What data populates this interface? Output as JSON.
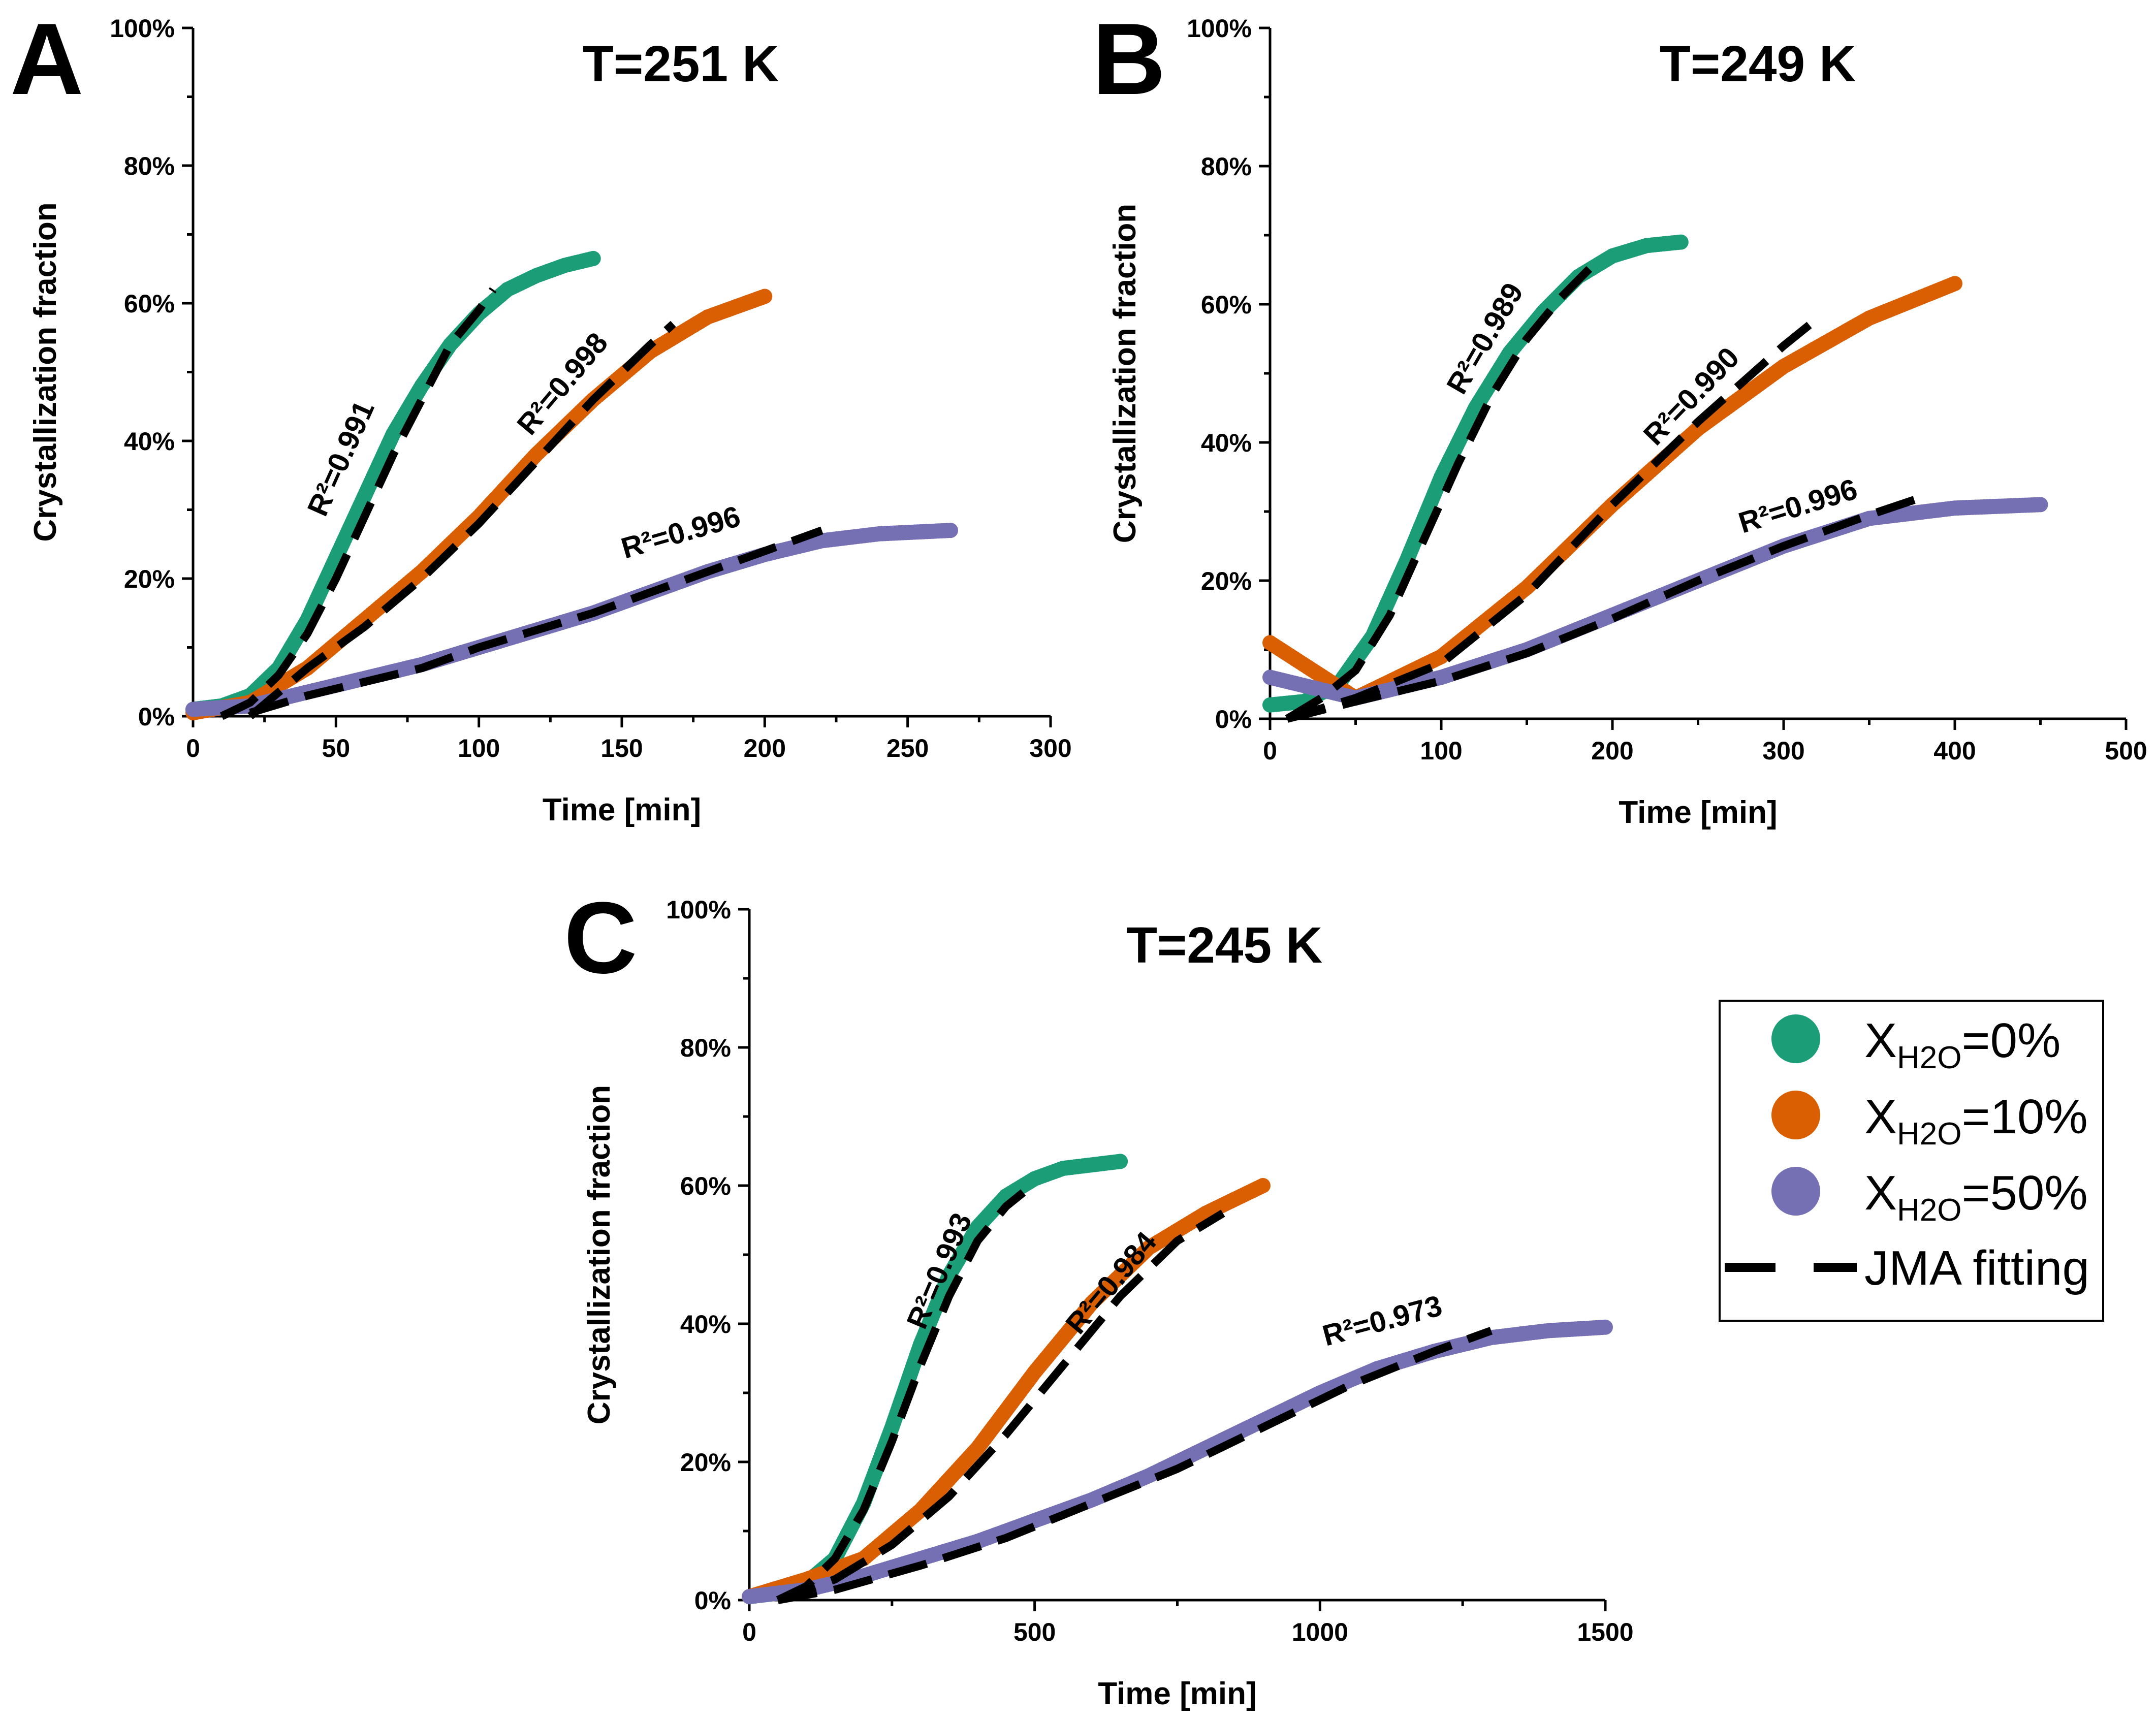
{
  "chart_data": [
    {
      "type": "scatter",
      "panel": "A",
      "title": "T=251 K",
      "xlabel": "Time [min]",
      "ylabel": "Crystallization fraction",
      "xlim": [
        0,
        300
      ],
      "ylim": [
        0,
        100
      ],
      "xticks": [
        "0",
        "50",
        "100",
        "150",
        "200",
        "250",
        "300"
      ],
      "yticks": [
        "0%",
        "20%",
        "40%",
        "60%",
        "80%",
        "100%"
      ],
      "series": [
        {
          "name": "X_H2O=0%",
          "color": "#1b9e77",
          "x": [
            0,
            10,
            20,
            30,
            40,
            50,
            60,
            70,
            80,
            90,
            100,
            110,
            120,
            130,
            140
          ],
          "y": [
            1,
            1.5,
            3,
            7,
            14,
            23,
            32,
            41,
            48,
            54,
            58.5,
            62,
            64,
            65.5,
            66.5
          ]
        },
        {
          "name": "X_H2O=10%",
          "color": "#d95f02",
          "x": [
            0,
            20,
            40,
            60,
            80,
            100,
            120,
            140,
            160,
            180,
            200
          ],
          "y": [
            0.5,
            2,
            7,
            14,
            21,
            29,
            38,
            46,
            53,
            58,
            61
          ]
        },
        {
          "name": "X_H2O=50%",
          "color": "#7570b3",
          "x": [
            0,
            20,
            40,
            60,
            80,
            100,
            120,
            140,
            160,
            180,
            200,
            220,
            240,
            265
          ],
          "y": [
            1,
            1.5,
            3.5,
            5.5,
            7.5,
            10,
            12.5,
            15,
            18,
            21,
            23.5,
            25.5,
            26.5,
            27
          ]
        }
      ],
      "fits": [
        {
          "name": "JMA fitting",
          "for": "X_H2O=0%",
          "r2": "R²=0.991",
          "x": [
            10,
            20,
            30,
            40,
            50,
            60,
            70,
            80,
            90,
            100,
            105
          ],
          "y": [
            0,
            2,
            6,
            12,
            20,
            29,
            38,
            46,
            54,
            59,
            62
          ]
        },
        {
          "name": "JMA fitting",
          "for": "X_H2O=10%",
          "r2": "R²=0.998",
          "x": [
            20,
            40,
            60,
            80,
            100,
            120,
            140,
            160,
            168
          ],
          "y": [
            0,
            7,
            13,
            20,
            28,
            37,
            46,
            54,
            57
          ]
        },
        {
          "name": "JMA fitting",
          "for": "X_H2O=50%",
          "r2": "R²=0.996",
          "x": [
            20,
            40,
            60,
            80,
            100,
            120,
            140,
            160,
            180,
            200,
            220
          ],
          "y": [
            0.5,
            3,
            5,
            7,
            10,
            12.5,
            15,
            18,
            21,
            24,
            27
          ]
        }
      ]
    },
    {
      "type": "scatter",
      "panel": "B",
      "title": "T=249 K",
      "xlabel": "Time [min]",
      "ylabel": "Crystallization fraction",
      "xlim": [
        0,
        500
      ],
      "ylim": [
        0,
        100
      ],
      "xticks": [
        "0",
        "100",
        "200",
        "300",
        "400",
        "500"
      ],
      "yticks": [
        "0%",
        "20%",
        "40%",
        "60%",
        "80%",
        "100%"
      ],
      "series": [
        {
          "name": "X_H2O=0%",
          "color": "#1b9e77",
          "x": [
            0,
            20,
            40,
            60,
            80,
            100,
            120,
            140,
            160,
            180,
            200,
            220,
            240
          ],
          "y": [
            2,
            2.5,
            5,
            12,
            23,
            35,
            45,
            53,
            59,
            64,
            67,
            68.5,
            69
          ]
        },
        {
          "name": "X_H2O=10%",
          "color": "#d95f02",
          "x": [
            0,
            50,
            100,
            150,
            200,
            250,
            300,
            350,
            400
          ],
          "y": [
            11,
            3,
            9,
            19,
            31,
            42,
            51,
            58,
            63
          ]
        },
        {
          "name": "X_H2O=50%",
          "color": "#7570b3",
          "x": [
            0,
            50,
            100,
            150,
            200,
            250,
            300,
            350,
            400,
            450
          ],
          "y": [
            6,
            3,
            6,
            10,
            15,
            20,
            25,
            29,
            30.5,
            31
          ]
        }
      ],
      "fits": [
        {
          "name": "JMA fitting",
          "for": "X_H2O=0%",
          "r2": "R²=0.989",
          "x": [
            10,
            30,
            50,
            70,
            90,
            110,
            130,
            150,
            170,
            190
          ],
          "y": [
            0,
            3,
            7,
            15,
            26,
            37,
            47,
            55,
            61,
            66
          ]
        },
        {
          "name": "JMA fitting",
          "for": "X_H2O=10%",
          "r2": "R²=0.990",
          "x": [
            10,
            50,
            100,
            150,
            200,
            250,
            300,
            315
          ],
          "y": [
            0,
            3,
            8,
            18,
            31,
            43,
            54,
            57
          ]
        },
        {
          "name": "JMA fitting",
          "for": "X_H2O=50%",
          "r2": "R²=0.996",
          "x": [
            10,
            50,
            100,
            150,
            200,
            250,
            300,
            350,
            380
          ],
          "y": [
            0,
            2.5,
            5.5,
            9.5,
            14.5,
            20,
            25,
            29.5,
            32
          ]
        }
      ]
    },
    {
      "type": "scatter",
      "panel": "C",
      "title": "T=245 K",
      "xlabel": "Time [min]",
      "ylabel": "Crystallization fraction",
      "xlim": [
        0,
        1500
      ],
      "ylim": [
        0,
        100
      ],
      "xticks": [
        "0",
        "500",
        "1000",
        "1500"
      ],
      "yticks": [
        "0%",
        "20%",
        "40%",
        "60%",
        "80%",
        "100%"
      ],
      "series": [
        {
          "name": "X_H2O=0%",
          "color": "#1b9e77",
          "x": [
            0,
            50,
            100,
            150,
            200,
            250,
            300,
            350,
            400,
            450,
            500,
            550,
            600,
            650
          ],
          "y": [
            0.5,
            1,
            2.5,
            6,
            14,
            25,
            37,
            47,
            54,
            58.5,
            61,
            62.5,
            63,
            63.5
          ]
        },
        {
          "name": "X_H2O=10%",
          "color": "#d95f02",
          "x": [
            0,
            100,
            200,
            300,
            400,
            500,
            600,
            700,
            800,
            900
          ],
          "y": [
            0.5,
            3,
            6,
            13,
            22,
            33,
            43,
            51,
            56,
            60
          ]
        },
        {
          "name": "X_H2O=50%",
          "color": "#7570b3",
          "x": [
            0,
            100,
            200,
            300,
            400,
            500,
            600,
            700,
            800,
            900,
            1000,
            1100,
            1200,
            1300,
            1400,
            1500
          ],
          "y": [
            0.5,
            1.5,
            3.5,
            6,
            8.5,
            11.5,
            14.5,
            18,
            22,
            26,
            30,
            33.5,
            36,
            38,
            39,
            39.5
          ]
        }
      ],
      "fits": [
        {
          "name": "JMA fitting",
          "for": "X_H2O=0%",
          "r2": "R²=0.993",
          "x": [
            50,
            100,
            150,
            200,
            250,
            300,
            350,
            400,
            450,
            480
          ],
          "y": [
            0,
            2,
            6,
            13,
            23,
            34,
            44,
            52,
            57,
            59
          ]
        },
        {
          "name": "JMA fitting",
          "for": "X_H2O=10%",
          "r2": "R²=0.984",
          "x": [
            50,
            150,
            250,
            350,
            450,
            550,
            650,
            750,
            830
          ],
          "y": [
            0,
            3,
            8,
            15,
            24,
            34,
            44,
            52,
            56
          ]
        },
        {
          "name": "JMA fitting",
          "for": "X_H2O=50%",
          "r2": "R²=0.973",
          "x": [
            50,
            150,
            300,
            450,
            600,
            750,
            900,
            1050,
            1200,
            1300
          ],
          "y": [
            0,
            1.5,
            5,
            9,
            14,
            19,
            25,
            31,
            36,
            39
          ]
        }
      ]
    }
  ],
  "legend": {
    "items": [
      {
        "base": "X",
        "sub": "H2O",
        "suffix": "=0%",
        "color": "#1b9e77",
        "kind": "marker"
      },
      {
        "base": "X",
        "sub": "H2O",
        "suffix": "=10%",
        "color": "#d95f02",
        "kind": "marker"
      },
      {
        "base": "X",
        "sub": "H2O",
        "suffix": "=50%",
        "color": "#7570b3",
        "kind": "marker"
      },
      {
        "label": "JMA fitting",
        "color": "#000000",
        "kind": "dash"
      }
    ]
  }
}
